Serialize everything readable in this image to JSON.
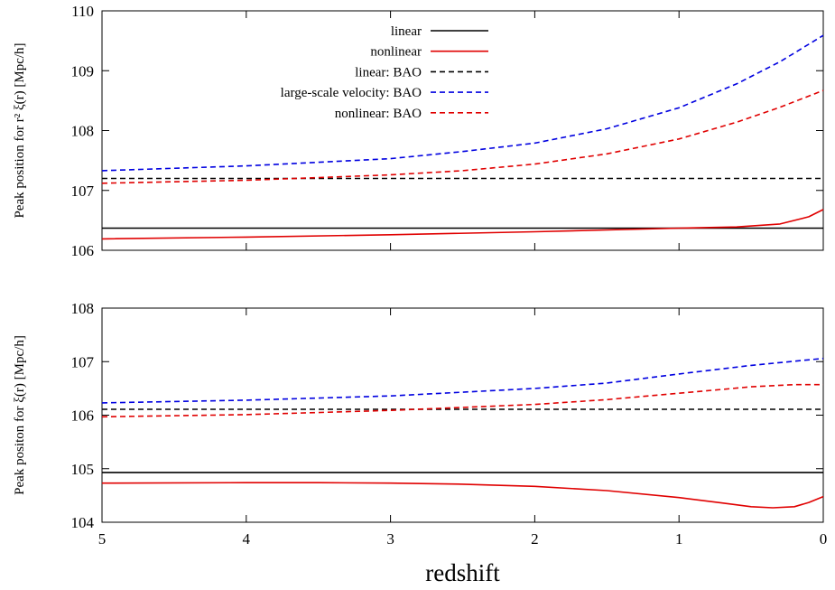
{
  "chart_data": [
    {
      "type": "line",
      "ylabel": "Peak position for r² ξ(r) [Mpc/h]",
      "xlabel": "",
      "xlim": [
        5,
        0
      ],
      "ylim": [
        106,
        110
      ],
      "x_ticks": [
        "5",
        "4",
        "3",
        "2",
        "1",
        "0"
      ],
      "y_ticks": [
        "106",
        "107",
        "108",
        "109",
        "110"
      ],
      "grid": false,
      "legend_position": "top-center",
      "series": [
        {
          "name": "linear",
          "color": "#000000",
          "dash": "solid",
          "x": [
            5,
            4,
            3,
            2,
            1,
            0
          ],
          "y": [
            106.37,
            106.37,
            106.37,
            106.37,
            106.37,
            106.37
          ]
        },
        {
          "name": "nonlinear",
          "color": "#e00000",
          "dash": "solid",
          "x": [
            5,
            4,
            3,
            2,
            1.5,
            1,
            0.6,
            0.3,
            0.1,
            0
          ],
          "y": [
            106.19,
            106.22,
            106.26,
            106.31,
            106.34,
            106.37,
            106.39,
            106.44,
            106.56,
            106.68
          ]
        },
        {
          "name": "linear: BAO",
          "color": "#000000",
          "dash": "dashed",
          "x": [
            5,
            4,
            3,
            2,
            1,
            0
          ],
          "y": [
            107.2,
            107.2,
            107.2,
            107.2,
            107.2,
            107.2
          ]
        },
        {
          "name": "large-scale velocity: BAO",
          "color": "#0000e0",
          "dash": "dashed",
          "x": [
            5,
            4,
            3,
            2.5,
            2,
            1.5,
            1,
            0.6,
            0.3,
            0
          ],
          "y": [
            107.33,
            107.41,
            107.53,
            107.65,
            107.79,
            108.03,
            108.38,
            108.78,
            109.15,
            109.59
          ]
        },
        {
          "name": "nonlinear: BAO",
          "color": "#e00000",
          "dash": "dashed",
          "x": [
            5,
            4,
            3,
            2.5,
            2,
            1.5,
            1,
            0.6,
            0.3,
            0
          ],
          "y": [
            107.12,
            107.17,
            107.26,
            107.33,
            107.44,
            107.61,
            107.86,
            108.14,
            108.39,
            108.67
          ]
        }
      ]
    },
    {
      "type": "line",
      "ylabel": "Peak positon for ξ(r) [Mpc/h]",
      "xlabel": "redshift",
      "xlim": [
        5,
        0
      ],
      "ylim": [
        104,
        108
      ],
      "x_ticks": [
        "5",
        "4",
        "3",
        "2",
        "1",
        "0"
      ],
      "y_ticks": [
        "104",
        "105",
        "106",
        "107",
        "108"
      ],
      "grid": false,
      "series": [
        {
          "name": "linear",
          "color": "#000000",
          "dash": "solid",
          "x": [
            5,
            4,
            3,
            2,
            1,
            0
          ],
          "y": [
            104.93,
            104.93,
            104.93,
            104.93,
            104.93,
            104.93
          ]
        },
        {
          "name": "nonlinear",
          "color": "#e00000",
          "dash": "solid",
          "x": [
            5,
            4,
            3.5,
            3,
            2.5,
            2,
            1.5,
            1,
            0.7,
            0.5,
            0.35,
            0.2,
            0.1,
            0
          ],
          "y": [
            104.73,
            104.74,
            104.74,
            104.73,
            104.71,
            104.67,
            104.59,
            104.46,
            104.36,
            104.29,
            104.27,
            104.29,
            104.37,
            104.48
          ]
        },
        {
          "name": "linear: BAO",
          "color": "#000000",
          "dash": "dashed",
          "x": [
            5,
            4,
            3,
            2,
            1,
            0
          ],
          "y": [
            106.11,
            106.11,
            106.11,
            106.11,
            106.11,
            106.11
          ]
        },
        {
          "name": "large-scale velocity: BAO",
          "color": "#0000e0",
          "dash": "dashed",
          "x": [
            5,
            4,
            3,
            2,
            1.5,
            1,
            0.5,
            0
          ],
          "y": [
            106.23,
            106.28,
            106.36,
            106.5,
            106.6,
            106.77,
            106.93,
            107.06
          ]
        },
        {
          "name": "nonlinear: BAO",
          "color": "#e00000",
          "dash": "dashed",
          "x": [
            5,
            4,
            3,
            2,
            1.5,
            1,
            0.5,
            0.2,
            0
          ],
          "y": [
            105.97,
            106.01,
            106.09,
            106.2,
            106.29,
            106.41,
            106.53,
            106.57,
            106.57
          ]
        }
      ]
    }
  ]
}
